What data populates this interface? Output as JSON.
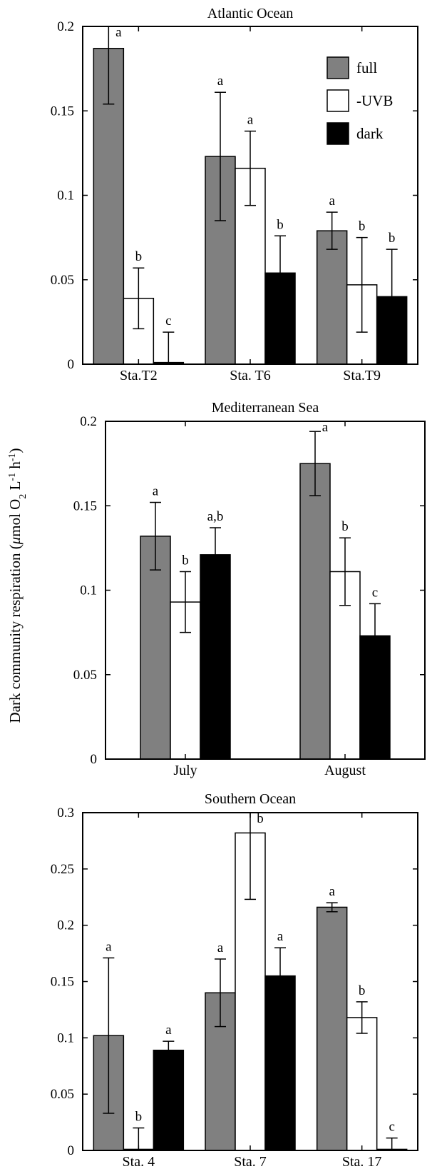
{
  "ylabel": {
    "main": "Dark community respiration (",
    "mu": "μ",
    "unit1": "mol O",
    "sub2": "2",
    "unit2": " L",
    "sup1": "-1",
    "unit3": " h",
    "sup2": "-1",
    "close": ")"
  },
  "colors": {
    "full": "#808080",
    "-UVB": "#ffffff",
    "dark": "#000000"
  },
  "chart_data": [
    {
      "type": "bar",
      "title": "Atlantic Ocean",
      "categories": [
        "Sta.T2",
        "Sta. T6",
        "Sta.T9"
      ],
      "ylim": [
        0,
        0.2
      ],
      "yticks": [
        0,
        0.05,
        0.1,
        0.15,
        0.2
      ],
      "ytick_labels": [
        "0",
        "0.05",
        "0.1",
        "0.15",
        "0.2"
      ],
      "legend": {
        "position": "top-right",
        "entries": [
          "full",
          "-UVB",
          "dark"
        ]
      },
      "series": [
        {
          "name": "full",
          "values": [
            0.187,
            0.123,
            0.079
          ],
          "errors": [
            0.033,
            0.038,
            0.011
          ],
          "letters": [
            "a",
            "a",
            "a"
          ]
        },
        {
          "name": "-UVB",
          "values": [
            0.039,
            0.116,
            0.047
          ],
          "errors": [
            0.018,
            0.022,
            0.028
          ],
          "letters": [
            "b",
            "a",
            "b"
          ]
        },
        {
          "name": "dark",
          "values": [
            0.001,
            0.054,
            0.04
          ],
          "errors": [
            0.018,
            0.022,
            0.028
          ],
          "letters": [
            "c",
            "b",
            "b"
          ]
        }
      ]
    },
    {
      "type": "bar",
      "title": "Mediterranean Sea",
      "categories": [
        "July",
        "August"
      ],
      "ylim": [
        0,
        0.2
      ],
      "yticks": [
        0,
        0.05,
        0.1,
        0.15,
        0.2
      ],
      "ytick_labels": [
        "0",
        "0.05",
        "0.1",
        "0.15",
        "0.2"
      ],
      "series": [
        {
          "name": "full",
          "values": [
            0.132,
            0.175
          ],
          "errors": [
            0.02,
            0.019
          ],
          "letters": [
            "a",
            "a"
          ]
        },
        {
          "name": "-UVB",
          "values": [
            0.093,
            0.111
          ],
          "errors": [
            0.018,
            0.02
          ],
          "letters": [
            "b",
            "b"
          ]
        },
        {
          "name": "dark",
          "values": [
            0.121,
            0.073
          ],
          "errors": [
            0.016,
            0.019
          ],
          "letters": [
            "a,b",
            "c"
          ]
        }
      ]
    },
    {
      "type": "bar",
      "title": "Southern Ocean",
      "categories": [
        "Sta. 4",
        "Sta. 7",
        "Sta. 17"
      ],
      "ylim": [
        0,
        0.3
      ],
      "yticks": [
        0,
        0.05,
        0.1,
        0.15,
        0.2,
        0.25,
        0.3
      ],
      "ytick_labels": [
        "0",
        "0.05",
        "0.1",
        "0.15",
        "0.2",
        "0.25",
        "0.3"
      ],
      "series": [
        {
          "name": "full",
          "values": [
            0.102,
            0.14,
            0.216
          ],
          "errors": [
            0.069,
            0.03,
            0.004
          ],
          "letters": [
            "a",
            "a",
            "a"
          ]
        },
        {
          "name": "-UVB",
          "values": [
            0.001,
            0.282,
            0.118
          ],
          "errors": [
            0.019,
            0.059,
            0.014
          ],
          "letters": [
            "b",
            "b",
            "b"
          ]
        },
        {
          "name": "dark",
          "values": [
            0.089,
            0.155,
            0.001
          ],
          "errors": [
            0.008,
            0.025,
            0.01
          ],
          "letters": [
            "a",
            "a",
            "c"
          ]
        }
      ]
    }
  ]
}
